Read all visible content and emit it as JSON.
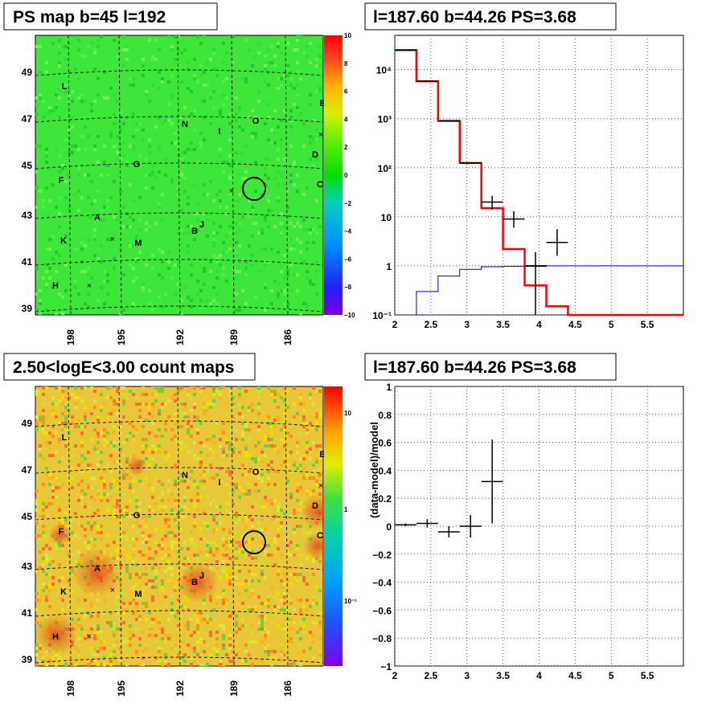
{
  "panels": {
    "map_top": {
      "title": "PS map b=45 l=192",
      "colorbar_labels": [
        "10",
        "8",
        "6",
        "4",
        "2",
        "0",
        "−2",
        "−4",
        "−6",
        "−8",
        "−10"
      ]
    },
    "map_bottom": {
      "title": "2.50<logE<3.00 count maps",
      "colorbar_labels": [
        "10",
        "1",
        "10⁻¹"
      ]
    },
    "map_axes": {
      "lat_labels": [
        "49",
        "47",
        "45",
        "43",
        "41",
        "39"
      ],
      "lon_labels": [
        "198",
        "195",
        "192",
        "189",
        "186"
      ]
    },
    "sources": [
      "L",
      "E",
      "N",
      "O",
      "I",
      "D",
      "G",
      "F",
      "C",
      "A",
      "B",
      "J",
      "K",
      "M",
      "H"
    ],
    "spectrum": {
      "title": "l=187.60 b=44.26 PS=3.68"
    },
    "residual": {
      "title": "l=187.60 b=44.26 PS=3.68"
    }
  },
  "chart_data": [
    {
      "type": "step",
      "title": "l=187.60 b=44.26 PS=3.68",
      "xlim": [
        2,
        6
      ],
      "ylim": [
        0.1,
        50000
      ],
      "yscale": "log",
      "grid": true,
      "x_ticks": [
        "2",
        "2.5",
        "3",
        "3.5",
        "4",
        "4.5",
        "5",
        "5.5"
      ],
      "y_ticks": [
        "10⁻¹",
        "1",
        "10",
        "10²",
        "10³",
        "10⁴"
      ],
      "series": [
        {
          "color": "#ff0000",
          "edges": [
            2,
            2.3,
            2.6,
            2.9,
            3.2,
            3.5,
            3.8,
            4.1,
            4.4,
            6
          ],
          "values": [
            25000,
            5800,
            900,
            125,
            15,
            2.2,
            0.4,
            0.15,
            0.1
          ]
        },
        {
          "color": "#0000cc",
          "edges": [
            2,
            2.3,
            2.6,
            2.9,
            3.2,
            3.5,
            4.1,
            6
          ],
          "values": [
            0.1,
            0.3,
            0.62,
            0.85,
            0.96,
            0.98,
            1.0
          ]
        },
        {
          "color": "#000000",
          "points": [
            {
              "x": 2.15,
              "xerr": 0.15,
              "y": 25000
            },
            {
              "x": 2.45,
              "xerr": 0.15,
              "y": 5800
            },
            {
              "x": 2.75,
              "xerr": 0.15,
              "y": 900
            },
            {
              "x": 3.05,
              "xerr": 0.15,
              "y": 125
            },
            {
              "x": 3.35,
              "xerr": 0.15,
              "y": 20,
              "ylo": 14,
              "yhi": 27
            },
            {
              "x": 3.65,
              "xerr": 0.15,
              "y": 9,
              "ylo": 6,
              "yhi": 13
            },
            {
              "x": 3.95,
              "xerr": 0.15,
              "y": 1,
              "ylo": 0.1,
              "yhi": 1.9
            },
            {
              "x": 4.25,
              "xerr": 0.15,
              "y": 3,
              "ylo": 1.6,
              "yhi": 5.6
            }
          ]
        }
      ]
    },
    {
      "type": "scatter",
      "title": "l=187.60 b=44.26 PS=3.68",
      "ylabel": "(data-model)/model",
      "xlim": [
        2,
        6
      ],
      "ylim": [
        -1,
        1
      ],
      "grid": true,
      "x_ticks": [
        "2",
        "2.5",
        "3",
        "3.5",
        "4",
        "4.5",
        "5",
        "5.5"
      ],
      "y_ticks": [
        "1",
        "0.8",
        "0.6",
        "0.4",
        "0.2",
        "0",
        "−0.2",
        "−0.4",
        "−0.6",
        "−0.8",
        "−1"
      ],
      "series": [
        {
          "points": [
            {
              "x": 2.15,
              "xerr": 0.15,
              "y": 0.01,
              "yerr": 0.01
            },
            {
              "x": 2.45,
              "xerr": 0.15,
              "y": 0.02,
              "yerr": 0.03
            },
            {
              "x": 2.75,
              "xerr": 0.15,
              "y": -0.04,
              "yerr": 0.04
            },
            {
              "x": 3.05,
              "xerr": 0.15,
              "y": 0.0,
              "yerr": 0.08
            },
            {
              "x": 3.35,
              "xerr": 0.15,
              "y": 0.32,
              "yerr": 0.3
            }
          ]
        }
      ]
    }
  ]
}
